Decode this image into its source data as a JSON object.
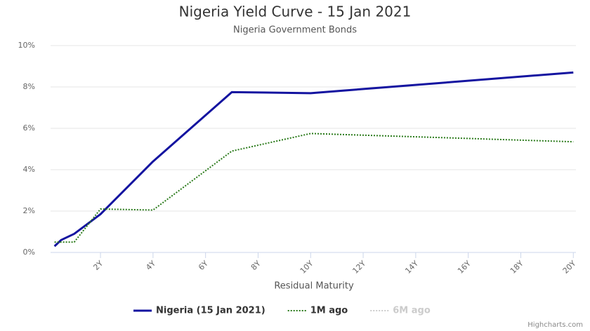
{
  "chart_data": {
    "type": "line",
    "title": "Nigeria Yield Curve - 15 Jan 2021",
    "subtitle": "Nigeria Government Bonds",
    "x_label": "Residual Maturity",
    "credits": "Highcharts.com",
    "x": [
      0.25,
      0.5,
      1,
      2,
      4,
      7,
      10,
      20
    ],
    "series": [
      {
        "name": "Nigeria (15 Jan 2021)",
        "color": "#1414a0",
        "dash": "solid",
        "visible": true,
        "values": [
          0.3,
          0.6,
          0.9,
          1.85,
          4.4,
          7.75,
          7.7,
          8.7
        ]
      },
      {
        "name": "1M ago",
        "color": "#2a7a1a",
        "dash": "dotted",
        "visible": true,
        "values": [
          0.5,
          0.5,
          0.5,
          2.1,
          2.05,
          4.9,
          5.75,
          5.35
        ]
      },
      {
        "name": "6M ago",
        "color": "#cccccc",
        "dash": "dotted",
        "visible": false
      }
    ],
    "xlim": [
      0.1,
      20.1
    ],
    "xticks": [
      {
        "value": 2,
        "label": "2Y"
      },
      {
        "value": 4,
        "label": "4Y"
      },
      {
        "value": 6,
        "label": "6Y"
      },
      {
        "value": 8,
        "label": "8Y"
      },
      {
        "value": 10,
        "label": "10Y"
      },
      {
        "value": 12,
        "label": "12Y"
      },
      {
        "value": 14,
        "label": "14Y"
      },
      {
        "value": 16,
        "label": "16Y"
      },
      {
        "value": 18,
        "label": "18Y"
      },
      {
        "value": 20,
        "label": "20Y"
      }
    ],
    "ylim": [
      0,
      10
    ],
    "yticks": [
      {
        "value": 0,
        "label": "0%"
      },
      {
        "value": 2,
        "label": "2%"
      },
      {
        "value": 4,
        "label": "4%"
      },
      {
        "value": 6,
        "label": "6%"
      },
      {
        "value": 8,
        "label": "8%"
      },
      {
        "value": 10,
        "label": "10%"
      }
    ],
    "grid": true
  }
}
